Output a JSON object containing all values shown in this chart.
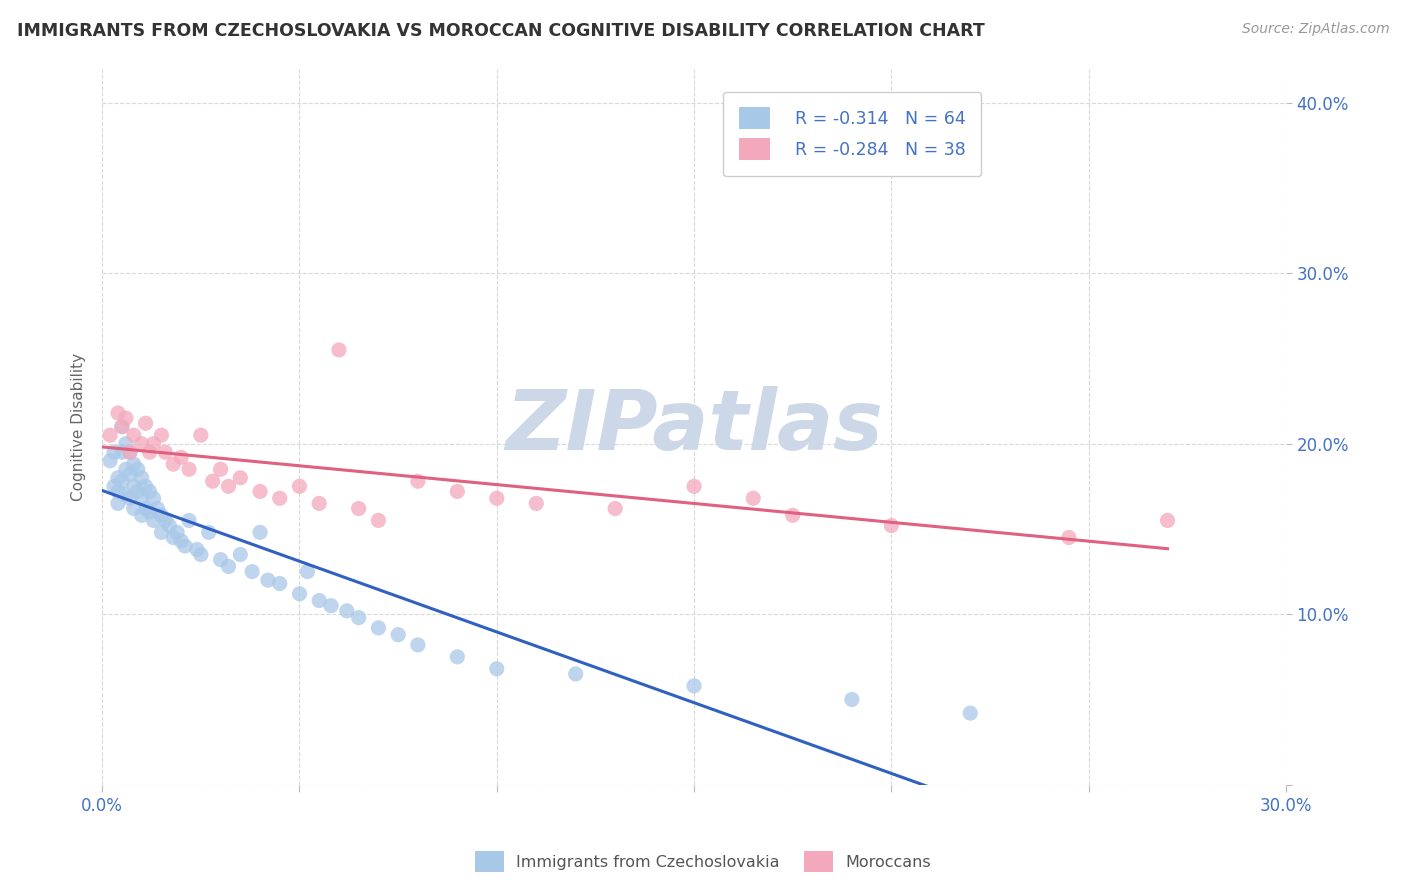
{
  "title": "IMMIGRANTS FROM CZECHOSLOVAKIA VS MOROCCAN COGNITIVE DISABILITY CORRELATION CHART",
  "source": "Source: ZipAtlas.com",
  "ylabel": "Cognitive Disability",
  "xlim": [
    0.0,
    0.3
  ],
  "ylim": [
    0.0,
    0.42
  ],
  "x_ticks": [
    0.0,
    0.05,
    0.1,
    0.15,
    0.2,
    0.25,
    0.3
  ],
  "y_ticks": [
    0.0,
    0.1,
    0.2,
    0.3,
    0.4
  ],
  "R_czech": -0.314,
  "N_czech": 64,
  "R_moroccan": -0.284,
  "N_moroccan": 38,
  "color_czech": "#a8c8e8",
  "color_moroccan": "#f4a8bc",
  "line_color_czech": "#3060c0",
  "line_color_moroccan": "#e06080",
  "watermark": "ZIPatlas",
  "watermark_color": "#ccd8e8",
  "legend_label_czech": "Immigrants from Czechoslovakia",
  "legend_label_moroccan": "Moroccans",
  "czech_x": [
    0.002,
    0.003,
    0.003,
    0.004,
    0.004,
    0.004,
    0.005,
    0.005,
    0.005,
    0.006,
    0.006,
    0.006,
    0.007,
    0.007,
    0.007,
    0.008,
    0.008,
    0.008,
    0.009,
    0.009,
    0.01,
    0.01,
    0.01,
    0.011,
    0.011,
    0.012,
    0.012,
    0.013,
    0.013,
    0.014,
    0.015,
    0.015,
    0.016,
    0.017,
    0.018,
    0.019,
    0.02,
    0.021,
    0.022,
    0.024,
    0.025,
    0.027,
    0.03,
    0.032,
    0.035,
    0.038,
    0.04,
    0.042,
    0.045,
    0.05,
    0.052,
    0.055,
    0.058,
    0.062,
    0.065,
    0.07,
    0.075,
    0.08,
    0.09,
    0.1,
    0.12,
    0.15,
    0.19,
    0.22
  ],
  "czech_y": [
    0.19,
    0.175,
    0.195,
    0.18,
    0.172,
    0.165,
    0.21,
    0.195,
    0.178,
    0.2,
    0.185,
    0.17,
    0.195,
    0.182,
    0.168,
    0.188,
    0.175,
    0.162,
    0.185,
    0.172,
    0.18,
    0.168,
    0.158,
    0.175,
    0.162,
    0.172,
    0.16,
    0.168,
    0.155,
    0.162,
    0.158,
    0.148,
    0.155,
    0.152,
    0.145,
    0.148,
    0.143,
    0.14,
    0.155,
    0.138,
    0.135,
    0.148,
    0.132,
    0.128,
    0.135,
    0.125,
    0.148,
    0.12,
    0.118,
    0.112,
    0.125,
    0.108,
    0.105,
    0.102,
    0.098,
    0.092,
    0.088,
    0.082,
    0.075,
    0.068,
    0.065,
    0.058,
    0.05,
    0.042
  ],
  "moroccan_x": [
    0.002,
    0.004,
    0.005,
    0.006,
    0.007,
    0.008,
    0.01,
    0.011,
    0.012,
    0.013,
    0.015,
    0.016,
    0.018,
    0.02,
    0.022,
    0.025,
    0.028,
    0.03,
    0.032,
    0.035,
    0.04,
    0.045,
    0.05,
    0.055,
    0.06,
    0.065,
    0.07,
    0.08,
    0.09,
    0.1,
    0.11,
    0.13,
    0.15,
    0.165,
    0.175,
    0.2,
    0.245,
    0.27
  ],
  "moroccan_y": [
    0.205,
    0.218,
    0.21,
    0.215,
    0.195,
    0.205,
    0.2,
    0.212,
    0.195,
    0.2,
    0.205,
    0.195,
    0.188,
    0.192,
    0.185,
    0.205,
    0.178,
    0.185,
    0.175,
    0.18,
    0.172,
    0.168,
    0.175,
    0.165,
    0.255,
    0.162,
    0.155,
    0.178,
    0.172,
    0.168,
    0.165,
    0.162,
    0.175,
    0.168,
    0.158,
    0.152,
    0.145,
    0.155
  ],
  "background_color": "#ffffff",
  "grid_color": "#d8d8d8",
  "title_color": "#333333",
  "axis_color": "#4472c4",
  "tick_color": "#4472c4"
}
